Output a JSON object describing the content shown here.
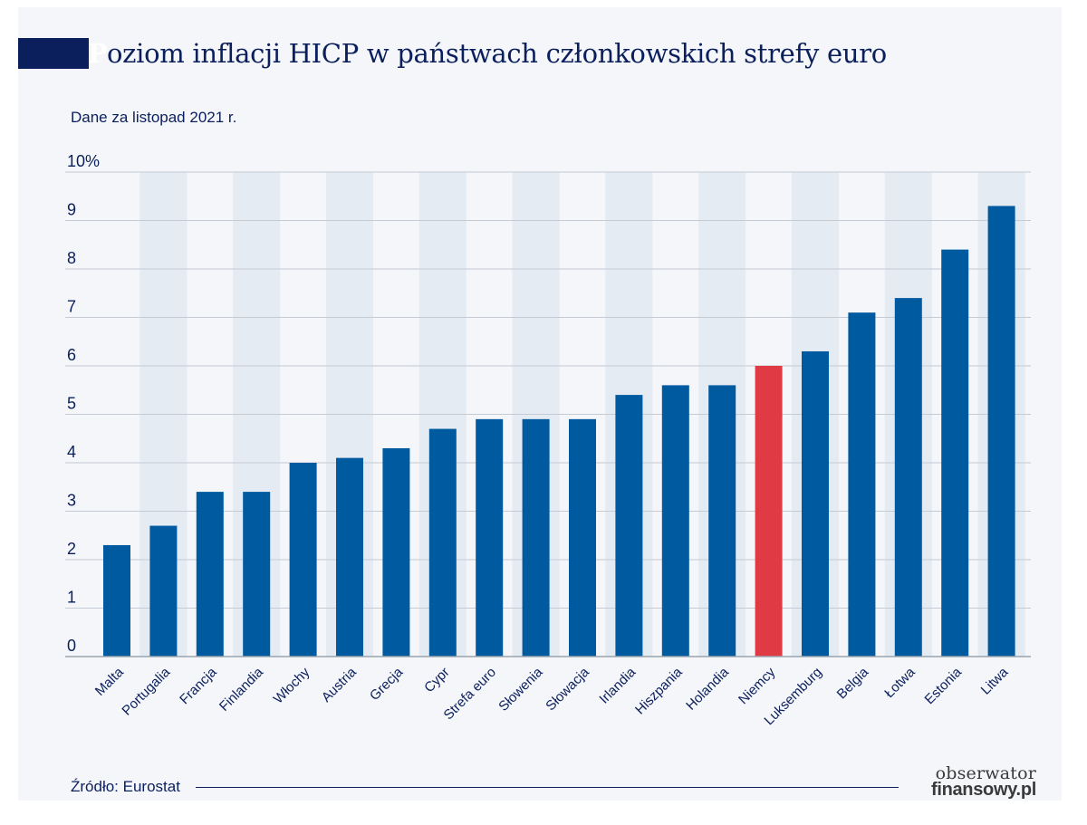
{
  "title": {
    "first_letter": "P",
    "rest": "oziom inflacji HICP w państwach członkowskich strefy euro"
  },
  "subtitle": "Dane za listopad 2021 r.",
  "source": "Źródło: Eurostat",
  "logo": {
    "line1": "obserwator",
    "line2": "finansowy.pl"
  },
  "colors": {
    "bar": "#005aa0",
    "highlight": "#e03b44",
    "grid": "#c4cbd4",
    "band": "#e4ebf3",
    "text": "#0b1f5c"
  },
  "chart_data": {
    "type": "bar",
    "title": "Poziom inflacji HICP w państwach członkowskich strefy euro",
    "subtitle": "Dane za listopad 2021 r.",
    "xlabel": "",
    "ylabel": "",
    "ylim": [
      0,
      10
    ],
    "grid": true,
    "y_ticks": [
      "0",
      "1",
      "2",
      "3",
      "4",
      "5",
      "6",
      "7",
      "8",
      "9",
      "10%"
    ],
    "categories": [
      "Malta",
      "Portugalia",
      "Francja",
      "Finlandia",
      "Włochy",
      "Austria",
      "Grecja",
      "Cypr",
      "Strefa euro",
      "Słowenia",
      "Słowacja",
      "Irlandia",
      "Hiszpania",
      "Holandia",
      "Niemcy",
      "Luksemburg",
      "Belgia",
      "Łotwa",
      "Estonia",
      "Litwa"
    ],
    "values": [
      2.3,
      2.7,
      3.4,
      3.4,
      4.0,
      4.1,
      4.3,
      4.7,
      4.9,
      4.9,
      4.9,
      5.4,
      5.6,
      5.6,
      6.0,
      6.3,
      7.1,
      7.4,
      8.4,
      9.3
    ],
    "highlighted": [
      "Niemcy"
    ]
  }
}
